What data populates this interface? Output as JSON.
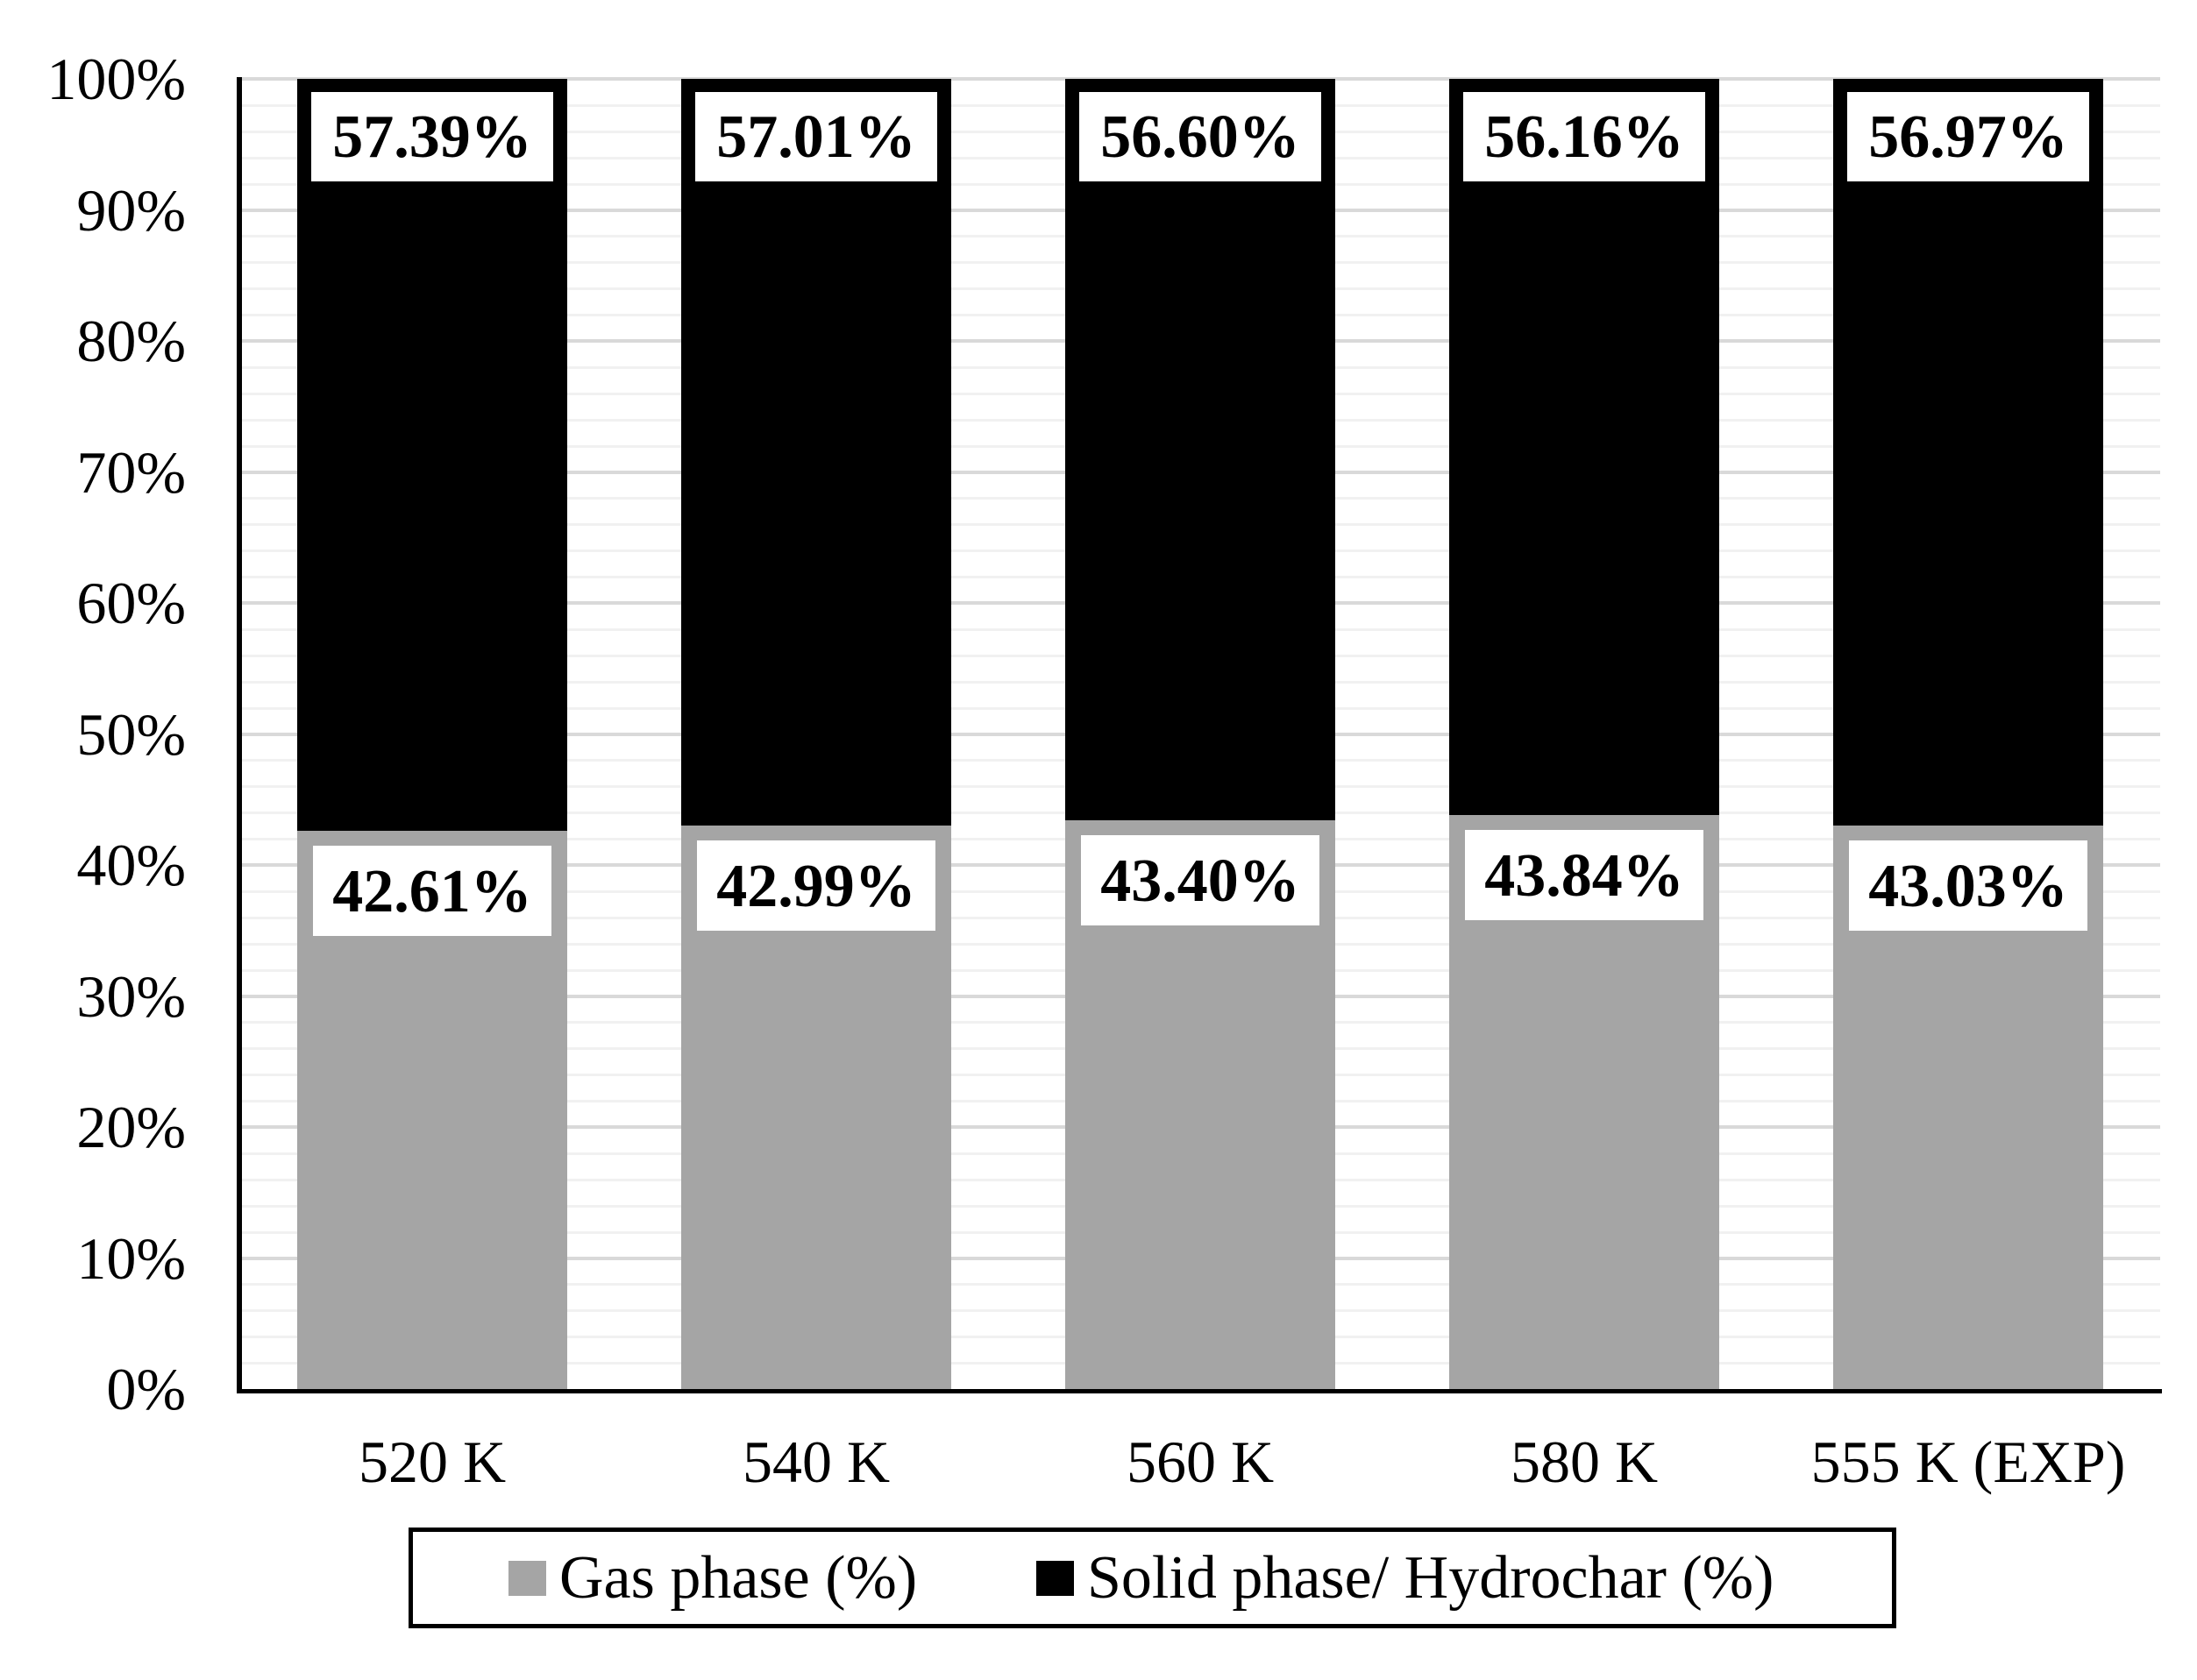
{
  "chart_data": {
    "type": "bar",
    "stacked": true,
    "categories": [
      "520 K",
      "540 K",
      "560 K",
      "580 K",
      "555 K (EXP)"
    ],
    "series": [
      {
        "name": "Gas phase (%)",
        "color": "#a5a5a5",
        "values": [
          42.61,
          42.99,
          43.4,
          43.84,
          43.03
        ],
        "labels": [
          "42.61%",
          "42.99%",
          "43.40%",
          "43.84%",
          "43.03%"
        ]
      },
      {
        "name": "Solid phase/ Hydrochar (%)",
        "color": "#000000",
        "values": [
          57.39,
          57.01,
          56.6,
          56.16,
          56.97
        ],
        "labels": [
          "57.39%",
          "57.01%",
          "56.60%",
          "56.16%",
          "56.97%"
        ]
      }
    ],
    "y_axis": {
      "min": 0,
      "max": 100,
      "major_step": 10,
      "minor_step": 2,
      "tick_labels": [
        "0%",
        "10%",
        "20%",
        "30%",
        "40%",
        "50%",
        "60%",
        "70%",
        "80%",
        "90%",
        "100%"
      ]
    },
    "legend": {
      "position": "bottom",
      "entries": [
        "Gas phase (%)",
        "Solid phase/ Hydrochar (%)"
      ]
    },
    "grid": {
      "major_color": "#d9d9d9",
      "minor_color": "#f1f1f1",
      "axis_color": "#000000",
      "label_box_bg": "#ffffff"
    }
  }
}
